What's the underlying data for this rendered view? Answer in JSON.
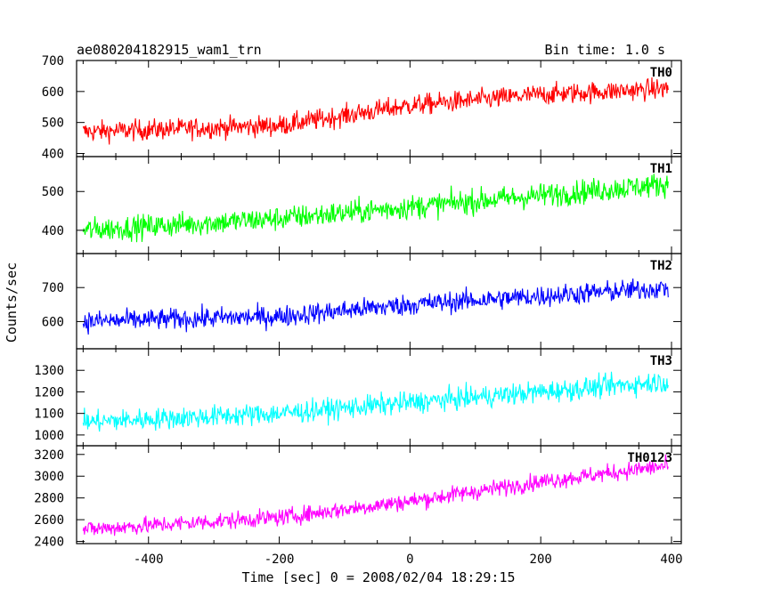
{
  "header": {
    "title": "ae080204182915_wam1_trn",
    "bin_time": "Bin time: 1.0 s"
  },
  "chart_data": {
    "type": "line",
    "title": "ae080204182915_wam1_trn",
    "subtitle": "Bin time: 1.0 s",
    "xlabel": "Time [sec] 0 = 2008/02/04 18:29:15",
    "ylabel": "Counts/sec",
    "xlim": [
      -510,
      415
    ],
    "x_ticks": [
      -400,
      -200,
      0,
      200,
      400
    ],
    "grid": false,
    "panels": [
      {
        "name": "TH0",
        "color": "#ff0000",
        "ylim": [
          390,
          700
        ],
        "y_ticks": [
          400,
          500,
          600,
          700
        ],
        "trend": {
          "x": [
            -500,
            -200,
            0,
            200,
            400
          ],
          "y": [
            470,
            490,
            555,
            590,
            610
          ]
        },
        "noise": 30
      },
      {
        "name": "TH1",
        "color": "#00ff00",
        "ylim": [
          340,
          590
        ],
        "y_ticks": [
          400,
          500
        ],
        "trend": {
          "x": [
            -500,
            -200,
            0,
            200,
            400
          ],
          "y": [
            400,
            430,
            460,
            490,
            520
          ]
        },
        "noise": 28
      },
      {
        "name": "TH2",
        "color": "#0000ff",
        "ylim": [
          520,
          800
        ],
        "y_ticks": [
          600,
          700
        ],
        "trend": {
          "x": [
            -500,
            -200,
            0,
            200,
            400
          ],
          "y": [
            600,
            615,
            650,
            675,
            700
          ]
        },
        "noise": 28
      },
      {
        "name": "TH3",
        "color": "#00ffff",
        "ylim": [
          950,
          1400
        ],
        "y_ticks": [
          1000,
          1100,
          1200,
          1300
        ],
        "trend": {
          "x": [
            -500,
            -200,
            0,
            200,
            400
          ],
          "y": [
            1060,
            1100,
            1150,
            1200,
            1250
          ]
        },
        "noise": 45
      },
      {
        "name": "TH0123",
        "color": "#ff00ff",
        "ylim": [
          2380,
          3280
        ],
        "y_ticks": [
          2400,
          2600,
          2800,
          3000,
          3200
        ],
        "trend": {
          "x": [
            -500,
            -200,
            0,
            200,
            400
          ],
          "y": [
            2510,
            2620,
            2770,
            2950,
            3100
          ]
        },
        "noise": 70
      }
    ]
  }
}
